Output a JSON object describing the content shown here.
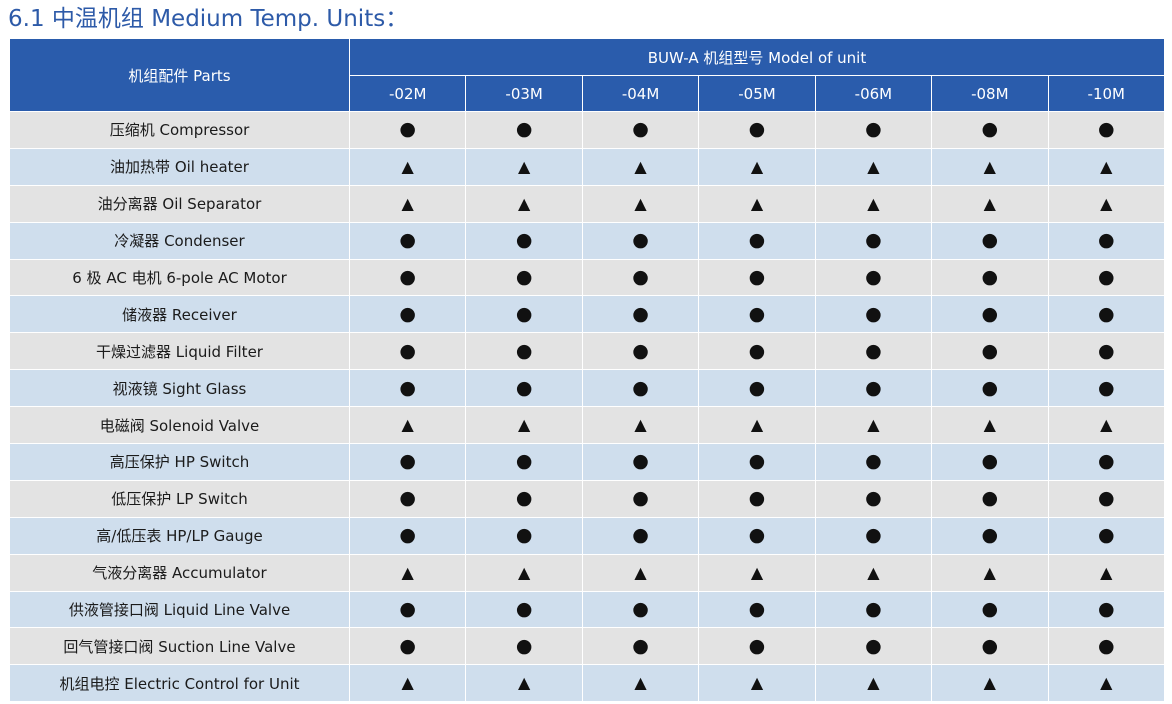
{
  "page": {
    "title": "6.1 中温机组 Medium Temp. Units："
  },
  "table": {
    "parts_header": "机组配件 Parts",
    "model_header": "BUW-A 机组型号   Model of unit",
    "models": [
      "-02M",
      "-03M",
      "-04M",
      "-05M",
      "-06M",
      "-08M",
      "-10M"
    ],
    "symbols": {
      "circle": "●",
      "triangle": "▲"
    },
    "rows": [
      {
        "part": "压缩机 Compressor",
        "marks": [
          "circle",
          "circle",
          "circle",
          "circle",
          "circle",
          "circle",
          "circle"
        ]
      },
      {
        "part": "油加热带 Oil heater",
        "marks": [
          "triangle",
          "triangle",
          "triangle",
          "triangle",
          "triangle",
          "triangle",
          "triangle"
        ]
      },
      {
        "part": "油分离器 Oil Separator",
        "marks": [
          "triangle",
          "triangle",
          "triangle",
          "triangle",
          "triangle",
          "triangle",
          "triangle"
        ]
      },
      {
        "part": "冷凝器 Condenser",
        "marks": [
          "circle",
          "circle",
          "circle",
          "circle",
          "circle",
          "circle",
          "circle"
        ]
      },
      {
        "part": "6 极 AC 电机 6-pole AC Motor",
        "marks": [
          "circle",
          "circle",
          "circle",
          "circle",
          "circle",
          "circle",
          "circle"
        ]
      },
      {
        "part": "储液器  Receiver",
        "marks": [
          "circle",
          "circle",
          "circle",
          "circle",
          "circle",
          "circle",
          "circle"
        ]
      },
      {
        "part": "干燥过滤器  Liquid Filter",
        "marks": [
          "circle",
          "circle",
          "circle",
          "circle",
          "circle",
          "circle",
          "circle"
        ]
      },
      {
        "part": "视液镜 Sight Glass",
        "marks": [
          "circle",
          "circle",
          "circle",
          "circle",
          "circle",
          "circle",
          "circle"
        ]
      },
      {
        "part": "电磁阀 Solenoid Valve",
        "marks": [
          "triangle",
          "triangle",
          "triangle",
          "triangle",
          "triangle",
          "triangle",
          "triangle"
        ]
      },
      {
        "part": "高压保护 HP Switch",
        "marks": [
          "circle",
          "circle",
          "circle",
          "circle",
          "circle",
          "circle",
          "circle"
        ]
      },
      {
        "part": "低压保护 LP Switch",
        "marks": [
          "circle",
          "circle",
          "circle",
          "circle",
          "circle",
          "circle",
          "circle"
        ]
      },
      {
        "part": "高/低压表 HP/LP Gauge",
        "marks": [
          "circle",
          "circle",
          "circle",
          "circle",
          "circle",
          "circle",
          "circle"
        ]
      },
      {
        "part": "气液分离器 Accumulator",
        "marks": [
          "triangle",
          "triangle",
          "triangle",
          "triangle",
          "triangle",
          "triangle",
          "triangle"
        ]
      },
      {
        "part": "供液管接口阀 Liquid Line Valve",
        "marks": [
          "circle",
          "circle",
          "circle",
          "circle",
          "circle",
          "circle",
          "circle"
        ]
      },
      {
        "part": "回气管接口阀 Suction Line Valve",
        "marks": [
          "circle",
          "circle",
          "circle",
          "circle",
          "circle",
          "circle",
          "circle"
        ]
      },
      {
        "part": "机组电控 Electric Control for Unit",
        "marks": [
          "triangle",
          "triangle",
          "triangle",
          "triangle",
          "triangle",
          "triangle",
          "triangle"
        ]
      }
    ]
  },
  "colors": {
    "title": "#2d5aa8",
    "header_bg": "#2a5cac",
    "row_gray": "#e3e3e3",
    "row_blue": "#cfdeed"
  }
}
